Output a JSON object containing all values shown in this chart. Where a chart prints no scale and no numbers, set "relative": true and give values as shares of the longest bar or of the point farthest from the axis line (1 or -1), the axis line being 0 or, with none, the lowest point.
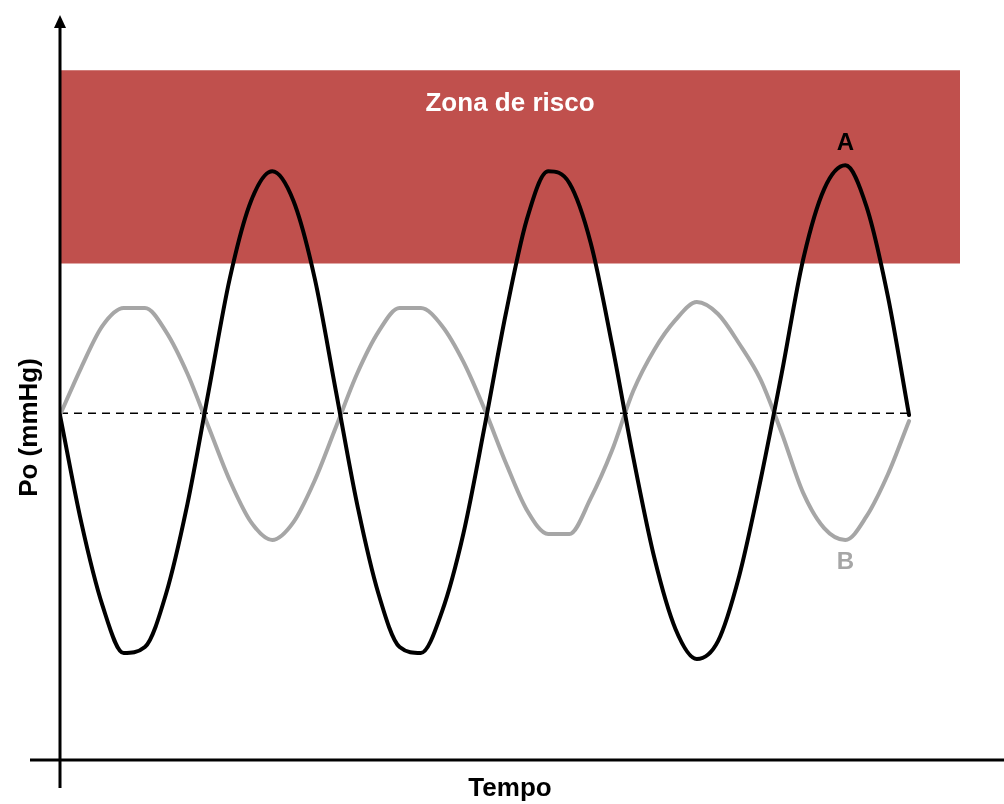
{
  "chart_data": {
    "type": "line",
    "relative": true,
    "xlabel": "Tempo",
    "ylabel": "Po (mmHg)",
    "legend": false,
    "marker": "none",
    "categories": [
      null,
      null,
      null,
      null,
      null,
      null,
      null,
      null,
      null,
      null,
      null,
      null,
      null,
      null,
      null,
      null,
      null,
      null,
      null,
      null,
      null,
      null,
      null,
      null,
      null,
      null,
      null,
      null,
      null,
      null,
      null,
      null,
      null,
      null,
      null,
      null,
      null,
      null,
      null,
      null,
      null
    ],
    "series": [
      {
        "name": "A",
        "color": "#000000",
        "values": [
          0.58,
          0.4,
          0.26,
          0.18,
          0.19,
          0.28,
          0.43,
          0.62,
          0.81,
          0.94,
          0.99,
          0.94,
          0.81,
          0.62,
          0.43,
          0.28,
          0.19,
          0.18,
          0.25,
          0.38,
          0.56,
          0.75,
          0.91,
          0.99,
          0.97,
          0.87,
          0.7,
          0.51,
          0.34,
          0.22,
          0.17,
          0.2,
          0.31,
          0.47,
          0.65,
          0.84,
          0.96,
          1.0,
          0.93,
          0.78,
          0.58
        ]
      },
      {
        "name": "B",
        "color": "#a6a6a6",
        "values": [
          0.58,
          0.66,
          0.73,
          0.76,
          0.76,
          0.72,
          0.65,
          0.56,
          0.47,
          0.4,
          0.37,
          0.4,
          0.47,
          0.56,
          0.65,
          0.72,
          0.76,
          0.76,
          0.73,
          0.67,
          0.59,
          0.5,
          0.42,
          0.38,
          0.38,
          0.44,
          0.52,
          0.62,
          0.69,
          0.74,
          0.77,
          0.75,
          0.7,
          0.64,
          0.55,
          0.45,
          0.39,
          0.37,
          0.41,
          0.48,
          0.57
        ]
      }
    ],
    "ref_lines": [
      {
        "axis": "y",
        "value": 0.583,
        "color": "#000000",
        "line_style": "dashed"
      }
    ],
    "bands": [
      {
        "axis": "y",
        "from": 0.835,
        "to": 1.16,
        "label": "Zona de risco",
        "color": "#c0504d"
      }
    ]
  }
}
